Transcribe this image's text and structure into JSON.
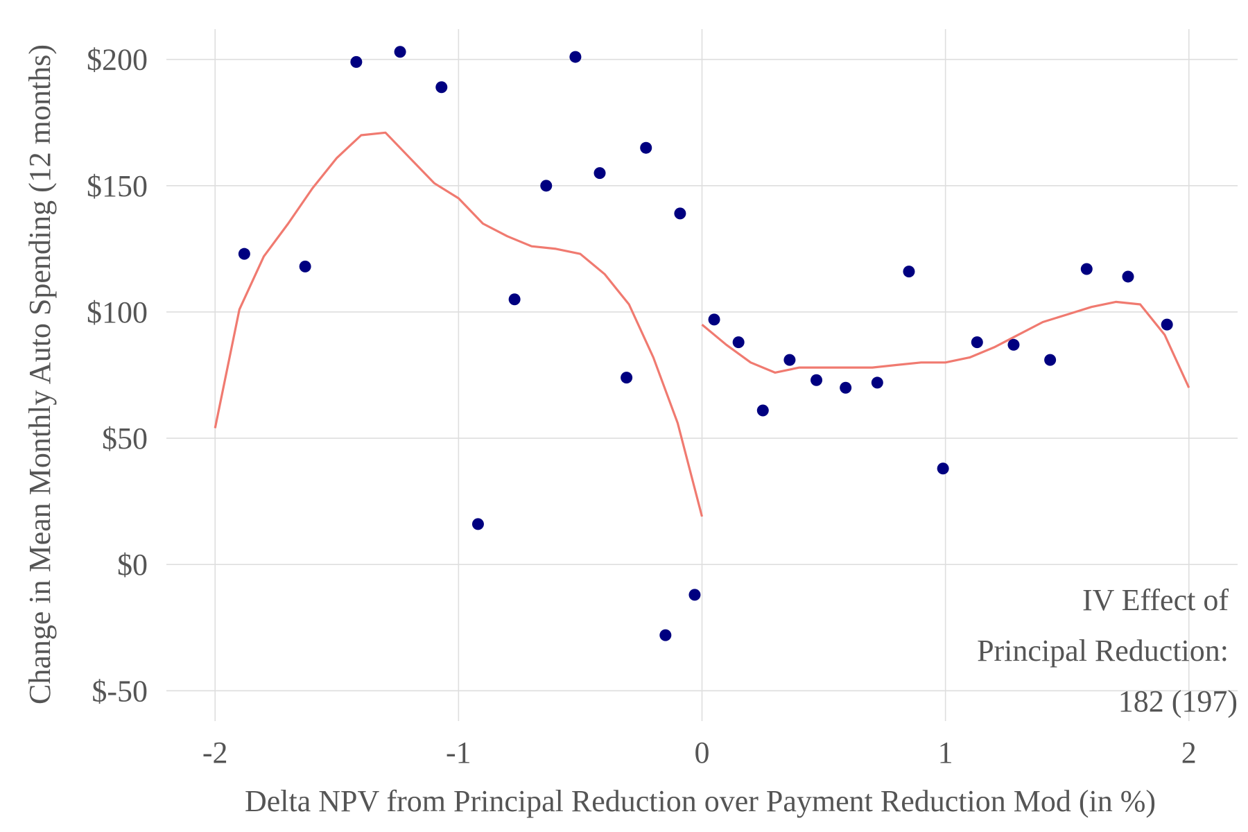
{
  "chart_data": {
    "type": "scatter",
    "xlabel": "Delta NPV from Principal Reduction over Payment Reduction Mod (in %)",
    "ylabel": "Change in Mean Monthly Auto Spending (12 months)",
    "xlim": [
      -2.2,
      2.2
    ],
    "ylim": [
      -62,
      212
    ],
    "x_ticks": [
      -2,
      -1,
      0,
      1,
      2
    ],
    "x_tick_labels": [
      "-2",
      "-1",
      "0",
      "1",
      "2"
    ],
    "y_ticks": [
      -50,
      0,
      50,
      100,
      150,
      200
    ],
    "y_tick_labels": [
      "$-50",
      "$0",
      "$50",
      "$100",
      "$150",
      "$200"
    ],
    "grid": true,
    "colors": {
      "points": "#000080",
      "fit_line": "#f07a70",
      "grid": "#dedede",
      "text": "#555555"
    },
    "annotation": [
      "IV Effect of",
      "Principal Reduction:",
      "182 (197)"
    ],
    "points": [
      {
        "x": -1.88,
        "y": 123
      },
      {
        "x": -1.63,
        "y": 118
      },
      {
        "x": -1.42,
        "y": 199
      },
      {
        "x": -1.24,
        "y": 203
      },
      {
        "x": -1.07,
        "y": 189
      },
      {
        "x": -0.92,
        "y": 16
      },
      {
        "x": -0.77,
        "y": 105
      },
      {
        "x": -0.64,
        "y": 150
      },
      {
        "x": -0.52,
        "y": 201
      },
      {
        "x": -0.42,
        "y": 155
      },
      {
        "x": -0.31,
        "y": 74
      },
      {
        "x": -0.23,
        "y": 165
      },
      {
        "x": -0.15,
        "y": -28
      },
      {
        "x": -0.09,
        "y": 139
      },
      {
        "x": -0.03,
        "y": -12
      },
      {
        "x": 0.05,
        "y": 97
      },
      {
        "x": 0.15,
        "y": 88
      },
      {
        "x": 0.25,
        "y": 61
      },
      {
        "x": 0.36,
        "y": 81
      },
      {
        "x": 0.47,
        "y": 73
      },
      {
        "x": 0.59,
        "y": 70
      },
      {
        "x": 0.72,
        "y": 72
      },
      {
        "x": 0.85,
        "y": 116
      },
      {
        "x": 0.99,
        "y": 38
      },
      {
        "x": 1.13,
        "y": 88
      },
      {
        "x": 1.28,
        "y": 87
      },
      {
        "x": 1.43,
        "y": 81
      },
      {
        "x": 1.58,
        "y": 117
      },
      {
        "x": 1.75,
        "y": 114
      },
      {
        "x": 1.91,
        "y": 95
      }
    ],
    "series": [
      {
        "x": [
          -2.0,
          -1.9,
          -1.8,
          -1.7,
          -1.6,
          -1.5,
          -1.4,
          -1.3,
          -1.2,
          -1.1,
          -1.0,
          -0.9,
          -0.8,
          -0.7,
          -0.6,
          -0.5,
          -0.4,
          -0.3,
          -0.2,
          -0.1,
          0.0
        ],
        "values": [
          54,
          101,
          122,
          135,
          149,
          161,
          170,
          171,
          161,
          151,
          145,
          135,
          130,
          126,
          125,
          123,
          115,
          103,
          82,
          56,
          19
        ]
      },
      {
        "x": [
          0.0,
          0.1,
          0.2,
          0.3,
          0.4,
          0.5,
          0.6,
          0.7,
          0.8,
          0.9,
          1.0,
          1.1,
          1.2,
          1.3,
          1.4,
          1.5,
          1.6,
          1.7,
          1.8,
          1.9,
          2.0
        ],
        "values": [
          95,
          87,
          80,
          76,
          78,
          78,
          78,
          78,
          79,
          80,
          80,
          82,
          86,
          91,
          96,
          99,
          102,
          104,
          103,
          91,
          70
        ]
      }
    ]
  }
}
